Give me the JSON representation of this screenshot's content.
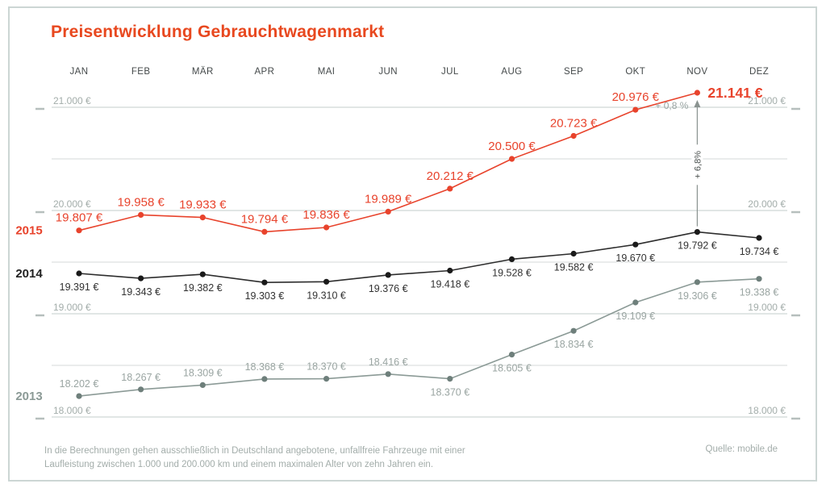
{
  "title": "Preisentwicklung Gebrauchtwagenmarkt",
  "footer": {
    "note_line1": "In die Berechnungen gehen ausschließlich in Deutschland angebotene, unfallfreie Fahrzeuge mit einer",
    "note_line2": "Laufleistung zwischen 1.000 und 200.000 km und einem maximalen Alter von zehn Jahren ein.",
    "source": "Quelle: mobile.de"
  },
  "colors": {
    "accent": "#e8432c",
    "title": "#e8481f",
    "series_2015": "#e8432c",
    "series_2014": "#2d2d2d",
    "series_2013": "#8b9a96",
    "gridline_labeled": "#cfd6d5",
    "gridline_unlabeled": "#dde1e0",
    "axis_text": "#a3adaa",
    "frame_border": "#ccd6d4"
  },
  "chart_data": {
    "type": "line",
    "title": "Preisentwicklung Gebrauchtwagenmarkt",
    "categories": [
      "JAN",
      "FEB",
      "MÄR",
      "APR",
      "MAI",
      "JUN",
      "JUL",
      "AUG",
      "SEP",
      "OKT",
      "NOV",
      "DEZ"
    ],
    "xlabel": "",
    "ylabel": "",
    "unit": "€",
    "ylim": [
      18000,
      21200
    ],
    "grid": true,
    "y_axis": {
      "gridlines": [
        {
          "value": 21000,
          "labeled": true,
          "label": "21.000 €"
        },
        {
          "value": 20500,
          "labeled": false,
          "label": ""
        },
        {
          "value": 20000,
          "labeled": true,
          "label": "20.000 €"
        },
        {
          "value": 19500,
          "labeled": false,
          "label": ""
        },
        {
          "value": 19000,
          "labeled": true,
          "label": "19.000 €"
        },
        {
          "value": 18500,
          "labeled": false,
          "label": ""
        },
        {
          "value": 18000,
          "labeled": true,
          "label": "18.000 €"
        }
      ]
    },
    "series": [
      {
        "name": "2015",
        "color": "#e8432c",
        "dot_color": "#e8432c",
        "values": [
          19807,
          19958,
          19933,
          19794,
          19836,
          19989,
          20212,
          20500,
          20723,
          20976,
          21141,
          null
        ],
        "labels": [
          "19.807 €",
          "19.958 €",
          "19.933 €",
          "19.794 €",
          "19.836 €",
          "19.989 €",
          "20.212 €",
          "20.500 €",
          "20.723 €",
          "20.976 €",
          "21.141 €",
          null
        ],
        "label_sides": [
          "above",
          "above",
          "above",
          "above",
          "above",
          "above",
          "above",
          "above",
          "above",
          "above",
          "right",
          null
        ]
      },
      {
        "name": "2014",
        "color": "#2d2d2d",
        "dot_color": "#1a1a1a",
        "values": [
          19391,
          19343,
          19382,
          19303,
          19310,
          19376,
          19418,
          19528,
          19582,
          19670,
          19792,
          19734
        ],
        "labels": [
          "19.391 €",
          "19.343 €",
          "19.382 €",
          "19.303 €",
          "19.310 €",
          "19.376 €",
          "19.418 €",
          "19.528 €",
          "19.582 €",
          "19.670 €",
          "19.792 €",
          "19.734 €"
        ],
        "label_sides": [
          "below",
          "below",
          "below",
          "below",
          "below",
          "below",
          "below",
          "below",
          "below",
          "below",
          "below",
          "below"
        ]
      },
      {
        "name": "2013",
        "color": "#8b9a96",
        "dot_color": "#6e7f7b",
        "values": [
          18202,
          18267,
          18309,
          18368,
          18370,
          18416,
          18370,
          18605,
          18834,
          19109,
          19306,
          19338
        ],
        "labels": [
          "18.202 €",
          "18.267 €",
          "18.309 €",
          "18.368 €",
          "18.370 €",
          "18.416 €",
          "18.370 €",
          "18.605 €",
          "18.834 €",
          "19.109 €",
          "19.306 €",
          "19.338 €"
        ],
        "label_sides": [
          "above",
          "above",
          "above",
          "above",
          "above",
          "above",
          "below",
          "below",
          "below",
          "below",
          "below",
          "below"
        ]
      }
    ],
    "annotations": [
      {
        "type": "text",
        "label": "+ 0,8 %",
        "month": "NOV"
      },
      {
        "type": "arrow-vertical",
        "label": "+ 6,8%",
        "month": "NOV",
        "from_series": "2014",
        "to_series": "2015"
      }
    ],
    "legend_position": "left-of-series-start"
  }
}
